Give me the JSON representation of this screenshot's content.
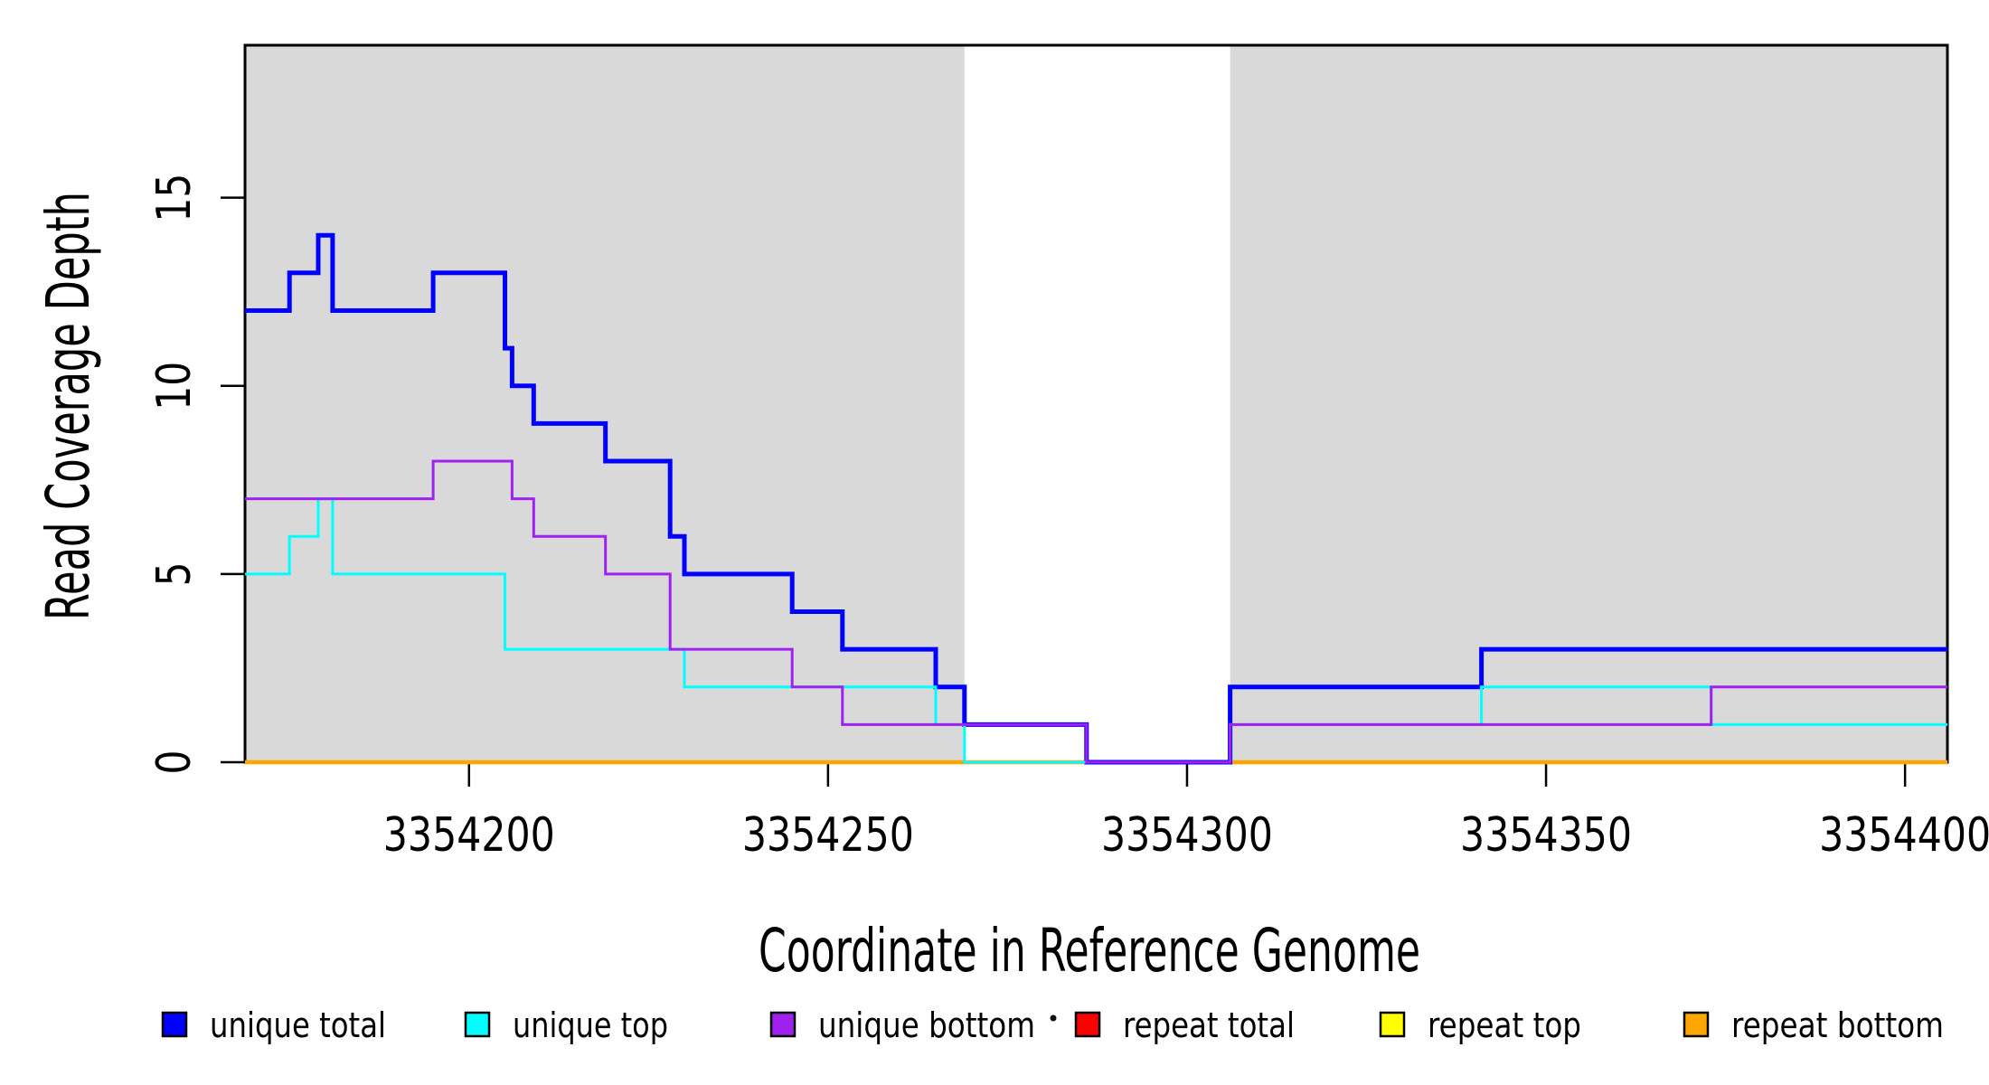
{
  "chart_data": {
    "type": "step-line",
    "title": "",
    "xlabel": "Coordinate in Reference Genome",
    "ylabel": "Read Coverage Depth",
    "x_range": [
      3354168.8,
      3354405.9
    ],
    "y_range": [
      0,
      19.05
    ],
    "x_ticks": [
      3354200,
      3354250,
      3354300,
      3354350,
      3354400
    ],
    "y_ticks": [
      0,
      5,
      10,
      15
    ],
    "grid": false,
    "plot_border_color": "#000000",
    "shaded_region_color": "#D9D9D9",
    "shaded_regions": [
      {
        "x1": 3354168.8,
        "x2": 3354269
      },
      {
        "x1": 3354306,
        "x2": 3354405.9
      }
    ],
    "series": [
      {
        "name": "unique total",
        "color": "#0000FF",
        "line_width": 5,
        "steps": [
          [
            3354168.8,
            12
          ],
          [
            3354175,
            13
          ],
          [
            3354179,
            14
          ],
          [
            3354181,
            12
          ],
          [
            3354195,
            13
          ],
          [
            3354205,
            11
          ],
          [
            3354206,
            10
          ],
          [
            3354209,
            9
          ],
          [
            3354219,
            8
          ],
          [
            3354228,
            6
          ],
          [
            3354230,
            5
          ],
          [
            3354245,
            4
          ],
          [
            3354252,
            3
          ],
          [
            3354265,
            2
          ],
          [
            3354269,
            1
          ],
          [
            3354286,
            0
          ],
          [
            3354306,
            2
          ],
          [
            3354341,
            3
          ]
        ]
      },
      {
        "name": "unique top",
        "color": "#00FFFF",
        "line_width": 3,
        "steps": [
          [
            3354168.8,
            5
          ],
          [
            3354175,
            6
          ],
          [
            3354179,
            7
          ],
          [
            3354181,
            5
          ],
          [
            3354205,
            3
          ],
          [
            3354230,
            2
          ],
          [
            3354265,
            1
          ],
          [
            3354269,
            0
          ],
          [
            3354306,
            1
          ],
          [
            3354341,
            2
          ],
          [
            3354373,
            1
          ]
        ]
      },
      {
        "name": "unique bottom",
        "color": "#A020F0",
        "line_width": 3,
        "steps": [
          [
            3354168.8,
            7
          ],
          [
            3354195,
            8
          ],
          [
            3354206,
            7
          ],
          [
            3354209,
            6
          ],
          [
            3354219,
            5
          ],
          [
            3354228,
            3
          ],
          [
            3354245,
            2
          ],
          [
            3354252,
            1
          ],
          [
            3354286,
            0
          ],
          [
            3354306,
            1
          ],
          [
            3354373,
            2
          ]
        ]
      },
      {
        "name": "repeat total",
        "color": "#FF0000",
        "line_width": 4,
        "steps": [
          [
            3354168.8,
            0
          ]
        ]
      },
      {
        "name": "repeat top",
        "color": "#FFFF00",
        "line_width": 4,
        "steps": [
          [
            3354168.8,
            0
          ]
        ]
      },
      {
        "name": "repeat bottom",
        "color": "#FFA500",
        "line_width": 4.5,
        "steps": [
          [
            3354168.8,
            0
          ]
        ]
      }
    ],
    "draw_order": [
      "repeat total",
      "repeat top",
      "repeat bottom",
      "unique total",
      "unique top",
      "unique bottom"
    ],
    "legend": {
      "position": "bottom",
      "items": [
        {
          "label": "unique total",
          "color": "#0000FF"
        },
        {
          "label": "unique top",
          "color": "#00FFFF"
        },
        {
          "label": "unique bottom",
          "color": "#A020F0"
        },
        {
          "label": "repeat total",
          "color": "#FF0000"
        },
        {
          "label": "repeat top",
          "color": "#FFFF00"
        },
        {
          "label": "repeat bottom",
          "color": "#FFA500"
        }
      ],
      "stray_dot": true
    }
  }
}
